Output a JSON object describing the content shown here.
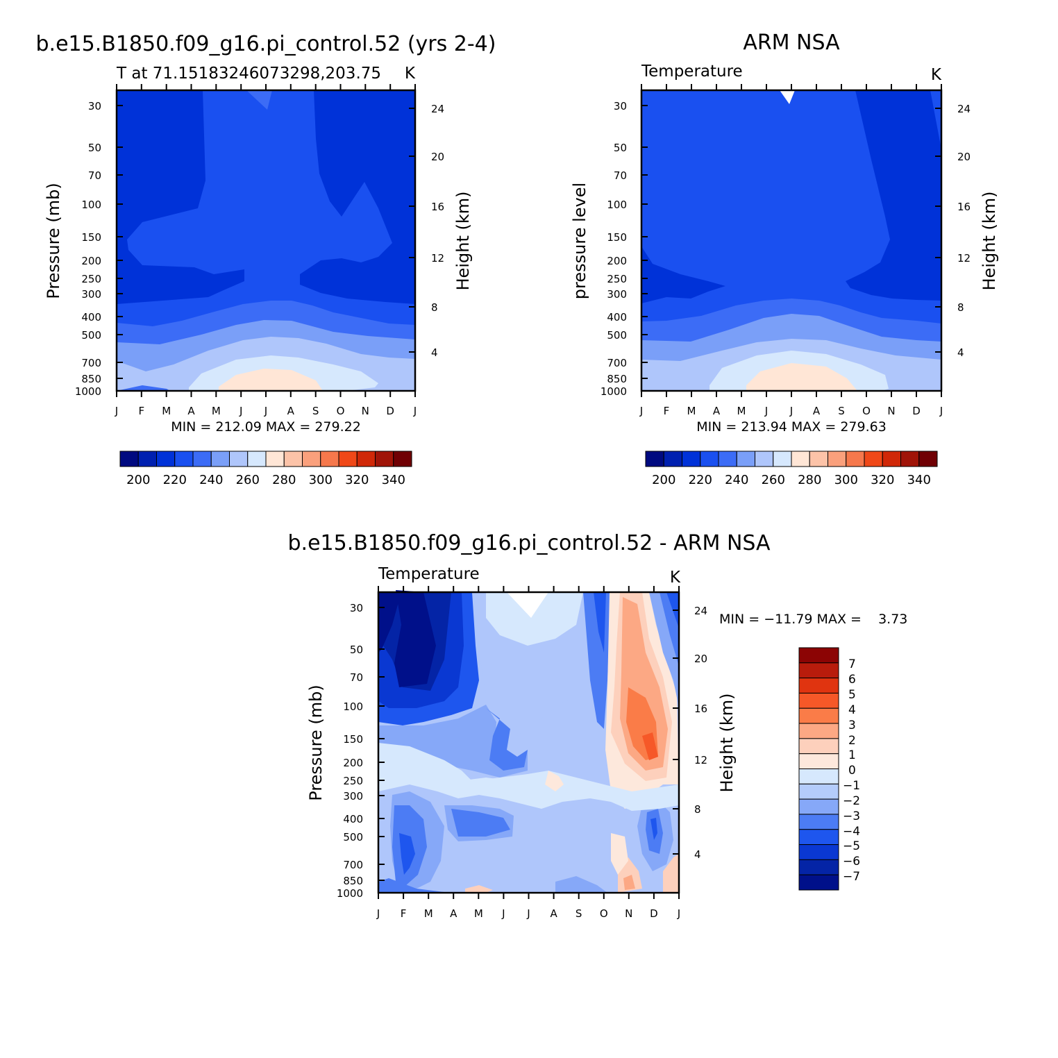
{
  "chart_data": [
    {
      "type": "heatmap",
      "title": "b.e15.B1850.f09_g16.pi_control.52 (yrs 2-4)",
      "subtitle": "T at 71.15183246073298,203.75",
      "units": "K",
      "ylabel": "Pressure (mb)",
      "ylabel_right": "Height (km)",
      "x_ticks": [
        "J",
        "F",
        "M",
        "A",
        "M",
        "J",
        "J",
        "A",
        "S",
        "O",
        "N",
        "D",
        "J"
      ],
      "y_ticks": [
        "30",
        "50",
        "70",
        "100",
        "150",
        "200",
        "250",
        "300",
        "400",
        "500",
        "700",
        "850",
        "1000"
      ],
      "y_right_ticks": [
        "24",
        "20",
        "16",
        "12",
        "8",
        "4"
      ],
      "min_max_label": "MIN = 212.09 MAX = 279.22",
      "min": 212.09,
      "max": 279.22,
      "colorbar_labels": [
        "200",
        "220",
        "240",
        "260",
        "280",
        "300",
        "320",
        "340"
      ]
    },
    {
      "type": "heatmap",
      "title": "ARM NSA",
      "subtitle": "Temperature",
      "units": "K",
      "ylabel": "pressure level",
      "ylabel_right": "Height (km)",
      "x_ticks": [
        "J",
        "F",
        "M",
        "A",
        "M",
        "J",
        "J",
        "A",
        "S",
        "O",
        "N",
        "D",
        "J"
      ],
      "y_ticks": [
        "30",
        "50",
        "70",
        "100",
        "150",
        "200",
        "250",
        "300",
        "400",
        "500",
        "700",
        "850",
        "1000"
      ],
      "y_right_ticks": [
        "24",
        "20",
        "16",
        "12",
        "8",
        "4"
      ],
      "min_max_label": "MIN = 213.94 MAX = 279.63",
      "min": 213.94,
      "max": 279.63,
      "colorbar_labels": [
        "200",
        "220",
        "240",
        "260",
        "280",
        "300",
        "320",
        "340"
      ]
    },
    {
      "type": "heatmap",
      "title": "b.e15.B1850.f09_g16.pi_control.52 - ARM NSA",
      "subtitle": "Temperature",
      "units": "K",
      "ylabel": "Pressure (mb)",
      "ylabel_right": "Height (km)",
      "x_ticks": [
        "J",
        "F",
        "M",
        "A",
        "M",
        "J",
        "J",
        "A",
        "S",
        "O",
        "N",
        "D",
        "J"
      ],
      "y_ticks": [
        "30",
        "50",
        "70",
        "100",
        "150",
        "200",
        "250",
        "300",
        "400",
        "500",
        "700",
        "850",
        "1000"
      ],
      "y_right_ticks": [
        "24",
        "20",
        "16",
        "12",
        "8",
        "4"
      ],
      "min_max_label": "MIN = −11.79 MAX =    3.73",
      "min": -11.79,
      "max": 3.73,
      "colorbar_labels": [
        "7",
        "6",
        "5",
        "4",
        "3",
        "2",
        "1",
        "0",
        "−1",
        "−2",
        "−3",
        "−4",
        "−5",
        "−6",
        "−7"
      ]
    }
  ],
  "colors": {
    "abs_scale": [
      "#000a80",
      "#0020b0",
      "#0032d8",
      "#1a50f0",
      "#3c6cf6",
      "#7a9ff8",
      "#afc6fb",
      "#d6e8fd",
      "#ffe6d6",
      "#fcc3a8",
      "#faa07c",
      "#f6784c",
      "#f04818",
      "#d02808",
      "#a01408",
      "#700004"
    ],
    "diff_scale": [
      "#8c0404",
      "#b81c0c",
      "#e03410",
      "#f65828",
      "#fa7c48",
      "#fca884",
      "#fdd0bc",
      "#fde8dc",
      "#d6e8fd",
      "#b4ccfb",
      "#86a8f8",
      "#4c7cf4",
      "#1e56ee",
      "#0a38d2",
      "#0424a6",
      "#00108a"
    ]
  }
}
